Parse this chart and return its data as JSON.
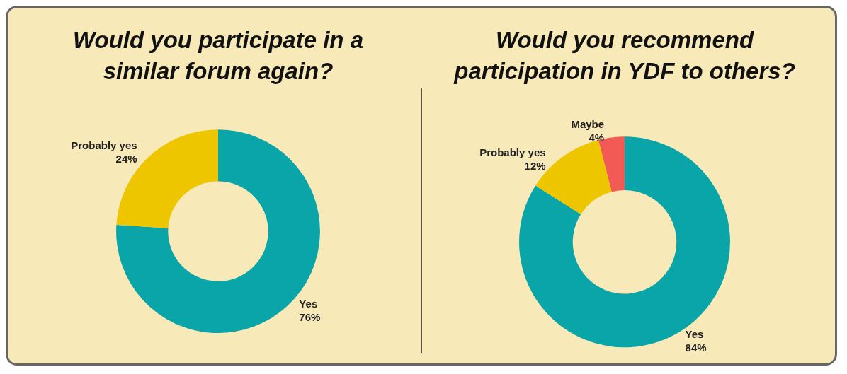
{
  "chart_data": [
    {
      "type": "donut",
      "title": "Would you participate in a\nsimilar forum again?",
      "categories": [
        "Yes",
        "Probably yes"
      ],
      "values": [
        76,
        24
      ],
      "value_labels": [
        "76%",
        "24%"
      ],
      "colors": [
        "#0aa5a8",
        "#eec600"
      ],
      "legend": false
    },
    {
      "type": "donut",
      "title": "Would you recommend\nparticipation in YDF to others?",
      "categories": [
        "Yes",
        "Probably yes",
        "Maybe"
      ],
      "values": [
        84,
        12,
        4
      ],
      "value_labels": [
        "84%",
        "12%",
        "4%"
      ],
      "colors": [
        "#0aa5a8",
        "#eec600",
        "#f25a55"
      ],
      "legend": false
    }
  ]
}
